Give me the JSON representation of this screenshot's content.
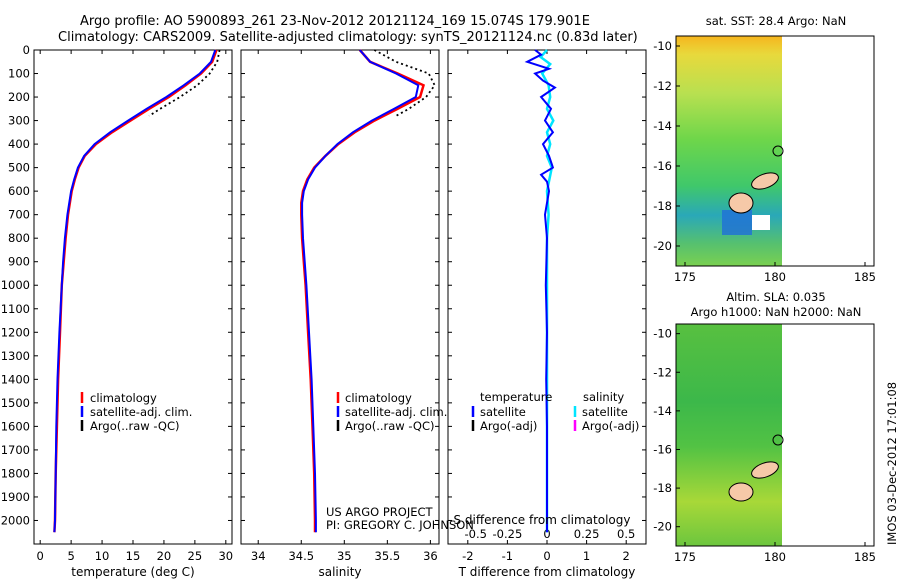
{
  "header": {
    "line1": "Argo profile: AO 5900893_261 23-Nov-2012 20121124_169 15.074S 179.901E",
    "line2": "Climatology: CARS2009. Satellite-adjusted climatology: synTS_20121124.nc (0.83d later)"
  },
  "colors": {
    "climatology": "#ff0000",
    "satellite": "#0000ff",
    "argo": "#000000",
    "salinity_satellite": "#00e5ff",
    "salinity_argo": "#ff00ff",
    "land": "#f6c9a8"
  },
  "chart_data": [
    {
      "id": "temperature",
      "type": "line",
      "xlabel": "temperature (deg C)",
      "ylabel": "",
      "xlim": [
        -1,
        31
      ],
      "ylim": [
        2100,
        0
      ],
      "xticks": [
        0,
        5,
        10,
        15,
        20,
        25,
        30
      ],
      "yticks": [
        0,
        100,
        200,
        300,
        400,
        500,
        600,
        700,
        800,
        900,
        1000,
        1100,
        1200,
        1300,
        1400,
        1500,
        1600,
        1700,
        1800,
        1900,
        2000
      ],
      "legend": [
        "climatology",
        "satellite-adj. clim.",
        "Argo(..raw -QC)"
      ],
      "series": [
        {
          "name": "climatology",
          "depth": [
            0,
            50,
            100,
            150,
            200,
            250,
            300,
            350,
            400,
            450,
            500,
            550,
            600,
            700,
            800,
            900,
            1000,
            1200,
            1400,
            1600,
            1800,
            2000,
            2050
          ],
          "values": [
            28.5,
            27.8,
            26.0,
            23.5,
            20.8,
            17.6,
            14.6,
            11.6,
            9.0,
            7.2,
            6.2,
            5.6,
            5.1,
            4.5,
            4.1,
            3.8,
            3.5,
            3.2,
            2.9,
            2.7,
            2.5,
            2.4,
            2.3
          ]
        },
        {
          "name": "satellite-adj. clim.",
          "depth": [
            0,
            50,
            100,
            150,
            200,
            250,
            300,
            350,
            400,
            450,
            500,
            550,
            600,
            700,
            800,
            900,
            1000,
            1200,
            1400,
            1600,
            1800,
            2000,
            2050
          ],
          "values": [
            28.3,
            27.6,
            25.8,
            23.2,
            20.4,
            17.2,
            14.2,
            11.3,
            8.8,
            7.1,
            6.1,
            5.5,
            5.0,
            4.4,
            4.0,
            3.7,
            3.5,
            3.1,
            2.8,
            2.6,
            2.5,
            2.4,
            2.3
          ]
        },
        {
          "name": "Argo(..raw -QC)",
          "depth": [
            0,
            50,
            100,
            150,
            200,
            250,
            280
          ],
          "values": [
            29.0,
            28.6,
            27.4,
            25.4,
            22.6,
            19.4,
            17.6
          ]
        }
      ]
    },
    {
      "id": "salinity",
      "type": "line",
      "xlabel": "salinity",
      "xlim": [
        33.8,
        36.1
      ],
      "ylim": [
        2100,
        0
      ],
      "xticks": [
        34,
        34.5,
        35,
        35.5,
        36
      ],
      "legend": [
        "climatology",
        "satellite-adj. clim.",
        "Argo(..raw -QC)"
      ],
      "series": [
        {
          "name": "climatology",
          "depth": [
            0,
            50,
            100,
            150,
            200,
            250,
            300,
            350,
            400,
            450,
            500,
            550,
            600,
            650,
            700,
            800,
            900,
            1000,
            1200,
            1400,
            1600,
            1800,
            2000,
            2050
          ],
          "values": [
            35.18,
            35.3,
            35.62,
            35.92,
            35.88,
            35.62,
            35.35,
            35.12,
            34.93,
            34.78,
            34.65,
            34.57,
            34.52,
            34.5,
            34.5,
            34.51,
            34.53,
            34.55,
            34.58,
            34.61,
            34.63,
            34.65,
            34.66,
            34.66
          ]
        },
        {
          "name": "satellite-adj. clim.",
          "depth": [
            0,
            50,
            100,
            150,
            200,
            250,
            300,
            350,
            400,
            450,
            500,
            550,
            600,
            650,
            700,
            800,
            900,
            1000,
            1200,
            1400,
            1600,
            1800,
            2000,
            2050
          ],
          "values": [
            35.18,
            35.3,
            35.6,
            35.86,
            35.83,
            35.58,
            35.32,
            35.1,
            34.92,
            34.78,
            34.66,
            34.58,
            34.53,
            34.51,
            34.51,
            34.52,
            34.54,
            34.56,
            34.59,
            34.62,
            34.64,
            34.66,
            34.67,
            34.67
          ]
        },
        {
          "name": "Argo(..raw -QC)",
          "depth": [
            0,
            50,
            100,
            150,
            200,
            250,
            280
          ],
          "values": [
            35.35,
            35.6,
            35.98,
            36.05,
            35.95,
            35.75,
            35.6
          ]
        }
      ]
    },
    {
      "id": "difference",
      "type": "line",
      "xlabel": "T difference from climatology",
      "xlabel_top": "S difference from climatology",
      "xlim": [
        -2.5,
        2.5
      ],
      "ylim": [
        2100,
        0
      ],
      "xticks": [
        -2,
        -1,
        0,
        1,
        2
      ],
      "xticks_top": [
        "-0.5",
        "-0.25",
        "0",
        "0.25",
        "0.5"
      ],
      "legend_temperature": {
        "title": "temperature",
        "items": [
          "satellite",
          "Argo(-adj)"
        ]
      },
      "legend_salinity": {
        "title": "salinity",
        "items": [
          "satellite",
          "Argo(-adj)"
        ]
      },
      "series": [
        {
          "name": "temperature satellite",
          "depth": [
            0,
            20,
            50,
            80,
            100,
            130,
            160,
            200,
            250,
            300,
            350,
            400,
            450,
            500,
            530,
            560,
            600,
            700,
            800,
            1000,
            1200,
            1400,
            1600,
            1800,
            2000,
            2050
          ],
          "values": [
            -0.3,
            -0.15,
            -0.5,
            0.05,
            -0.3,
            -0.1,
            0.2,
            -0.15,
            0.1,
            -0.05,
            0.15,
            -0.1,
            0.05,
            0.15,
            -0.15,
            0.0,
            0.05,
            -0.05,
            0.0,
            -0.03,
            0.0,
            -0.02,
            0.0,
            0.0,
            0.0,
            0.0
          ]
        },
        {
          "name": "salinity satellite",
          "depth": [
            0,
            30,
            60,
            100,
            150,
            200,
            250,
            300,
            350,
            400,
            450,
            500,
            600,
            700,
            800,
            1000,
            1200,
            1400,
            1600,
            1800,
            2000,
            2050
          ],
          "values": [
            0.0,
            -0.04,
            0.02,
            -0.03,
            0.01,
            0.02,
            0.0,
            0.04,
            0.0,
            0.02,
            0.0,
            0.03,
            0.0,
            0.01,
            0.0,
            0.0,
            0.0,
            0.0,
            0.0,
            0.0,
            0.0,
            0.0
          ]
        }
      ]
    },
    {
      "id": "sst-map",
      "type": "heatmap",
      "title": "sat. SST: 28.4  Argo: NaN",
      "xlim": [
        174.5,
        185.5
      ],
      "ylim": [
        -21,
        -9.5
      ],
      "xticks": [
        175,
        180,
        185
      ],
      "yticks": [
        -10,
        -12,
        -14,
        -16,
        -18,
        -20
      ],
      "data_extent_lon": [
        174.5,
        180
      ],
      "argo_position": {
        "lat": -15.074,
        "lon": 179.901
      }
    },
    {
      "id": "sla-map",
      "type": "heatmap",
      "title": "Altim. SLA: 0.035",
      "subtitle": "Argo h1000: NaN h2000: NaN",
      "xlim": [
        174.5,
        185.5
      ],
      "ylim": [
        -21,
        -9.5
      ],
      "xticks": [
        175,
        180,
        185
      ],
      "yticks": [
        -10,
        -12,
        -14,
        -16,
        -18,
        -20
      ],
      "data_extent_lon": [
        174.5,
        180
      ],
      "argo_position": {
        "lat": -15.074,
        "lon": 179.901
      }
    }
  ],
  "credits": {
    "line1": "US ARGO PROJECT",
    "line2": "PI: GREGORY C. JOHNSON"
  },
  "footer": {
    "stamp": "IMOS 03-Dec-2012 17:01:08"
  }
}
